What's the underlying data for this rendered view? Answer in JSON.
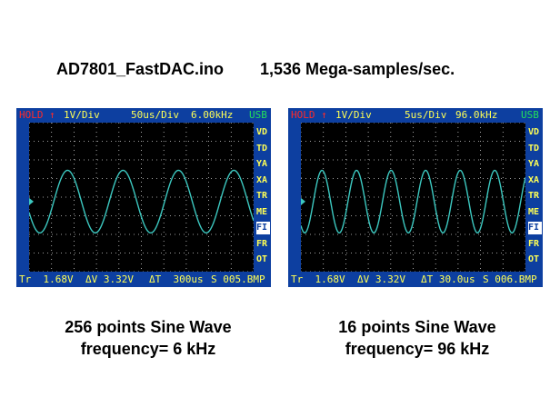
{
  "heading": {
    "sketch": "AD7801_FastDAC.ino",
    "rate": "1,536 Mega-samples/sec."
  },
  "scopes": [
    {
      "status": "HOLD ↑",
      "volts_div": "1V/Div",
      "time_div": "50us/Div",
      "freq": "6.00kHz",
      "usb": "USB",
      "menu": [
        "VD",
        "TD",
        "YA",
        "XA",
        "TR",
        "ME",
        "FI",
        "FR",
        "OT"
      ],
      "active_menu": "FI",
      "trigger": "Tr  1.68V",
      "delta_v": "ΔV 3.32V",
      "delta_t": "ΔT  300us",
      "file": "S 005.BMP",
      "waveform": {
        "type": "sine",
        "cycles_visible": 4.05,
        "phase_deg": 200,
        "color": "#3cc8c0"
      },
      "caption_line1": "256 points Sine Wave",
      "caption_line2": "frequency= 6 kHz"
    },
    {
      "status": "HOLD ↑",
      "volts_div": "1V/Div",
      "time_div": "5us/Div",
      "freq": "96.0kHz",
      "usb": "USB",
      "menu": [
        "VD",
        "TD",
        "YA",
        "XA",
        "TR",
        "ME",
        "FI",
        "FR",
        "OT"
      ],
      "active_menu": "FI",
      "trigger": "Tr  1.68V",
      "delta_v": "ΔV 3.32V",
      "delta_t": "ΔT 30.0us",
      "file": "S 006.BMP",
      "waveform": {
        "type": "sine",
        "cycles_visible": 6.5,
        "phase_deg": 230,
        "color": "#3cc8c0"
      },
      "caption_line1": "16 points Sine Wave",
      "caption_line2": "frequency= 96 kHz"
    }
  ],
  "colors": {
    "bezel": "#0d3fa0",
    "label": "#ffff55",
    "status": "#ff2a2a",
    "usb": "#22e05a",
    "grid": "#cfcfcf"
  }
}
